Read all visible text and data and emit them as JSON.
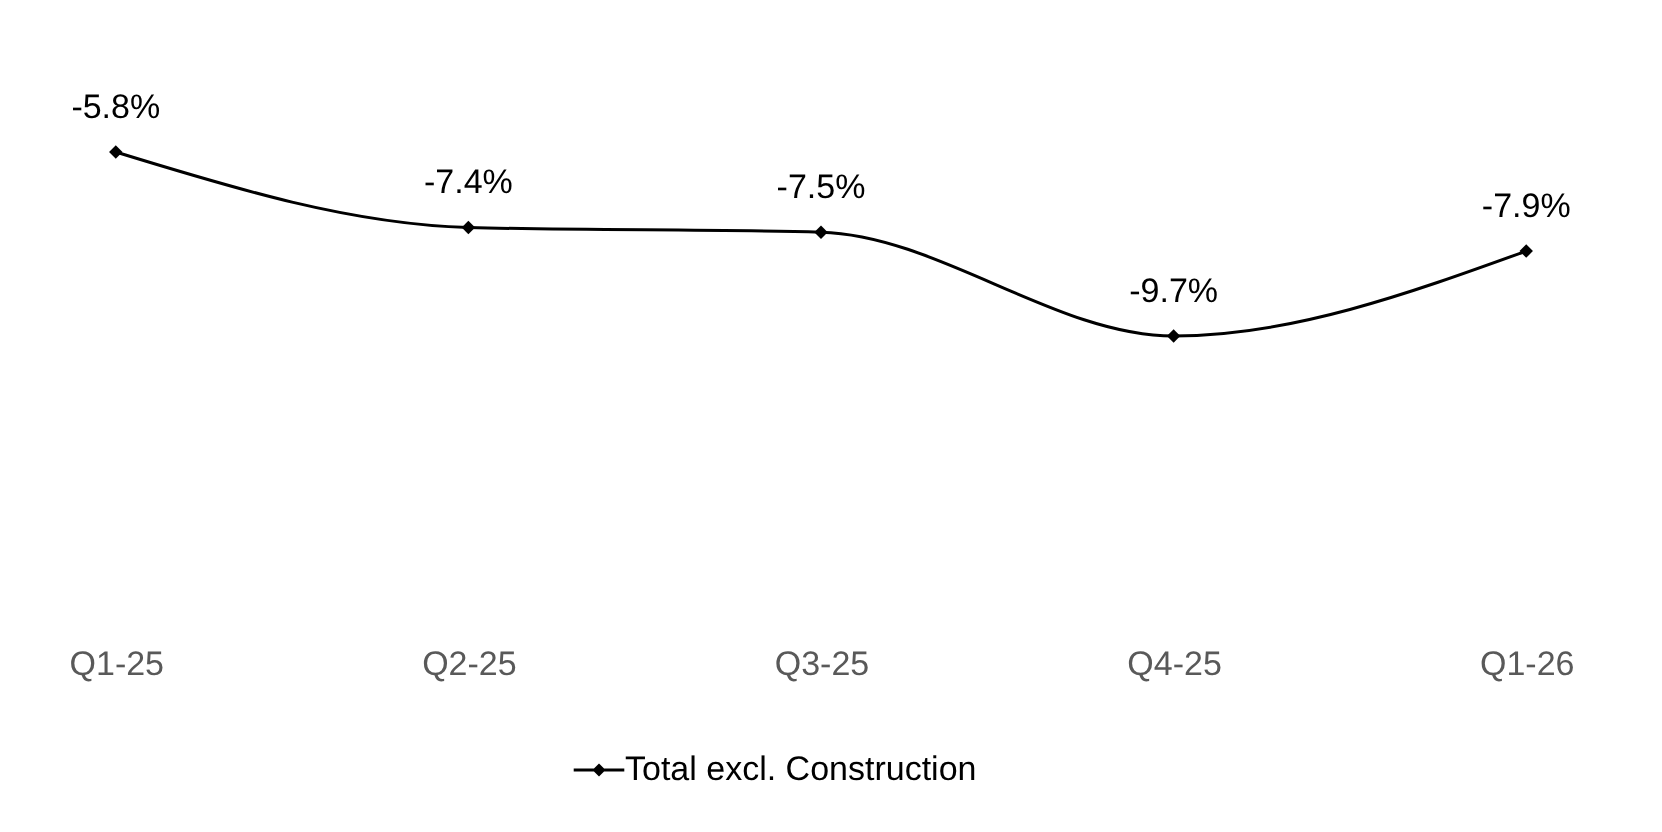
{
  "chart_data": {
    "type": "line",
    "categories": [
      "Q1-25",
      "Q2-25",
      "Q3-25",
      "Q4-25",
      "Q1-26"
    ],
    "series": [
      {
        "name": "Total excl. Construction",
        "color": "#000000",
        "values": [
          -5.8,
          -7.4,
          -7.5,
          -9.7,
          -7.9
        ],
        "value_labels": [
          "-5.8%",
          "-7.4%",
          "-7.5%",
          "-9.7%",
          "-7.9%"
        ]
      }
    ],
    "tick_labels": "x",
    "legend": "bottom",
    "marker": "diamond",
    "line_style": "solid"
  }
}
